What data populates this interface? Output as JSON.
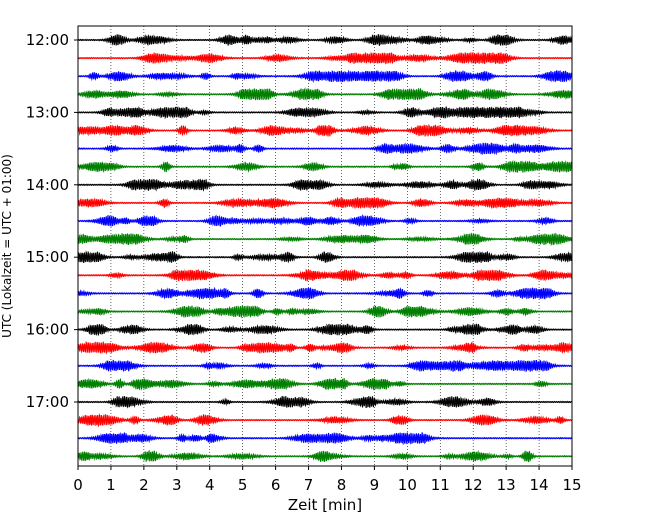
{
  "chart_data": {
    "type": "line",
    "title": "",
    "xlabel": "Zeit  [min]",
    "ylabel": "UTC (Lokalzeit = UTC + 01:00)",
    "xlim": [
      0,
      15
    ],
    "x_ticks": [
      "0",
      "1",
      "2",
      "3",
      "4",
      "5",
      "6",
      "7",
      "8",
      "9",
      "10",
      "11",
      "12",
      "13",
      "14",
      "15"
    ],
    "y_ticks": [
      "12:00",
      "13:00",
      "14:00",
      "15:00",
      "16:00",
      "17:00"
    ],
    "trace_minutes": 15,
    "trace_start": "12:00",
    "trace_count": 24,
    "grid": "vertical-dotted",
    "colors": [
      "#000000",
      "#ff0000",
      "#0000ff",
      "#007f00"
    ],
    "traces": [
      {
        "start": "12:00",
        "color": "#000000"
      },
      {
        "start": "12:15",
        "color": "#ff0000"
      },
      {
        "start": "12:30",
        "color": "#0000ff"
      },
      {
        "start": "12:45",
        "color": "#007f00"
      },
      {
        "start": "13:00",
        "color": "#000000"
      },
      {
        "start": "13:15",
        "color": "#ff0000"
      },
      {
        "start": "13:30",
        "color": "#0000ff"
      },
      {
        "start": "13:45",
        "color": "#007f00"
      },
      {
        "start": "14:00",
        "color": "#000000"
      },
      {
        "start": "14:15",
        "color": "#ff0000"
      },
      {
        "start": "14:30",
        "color": "#0000ff"
      },
      {
        "start": "14:45",
        "color": "#007f00"
      },
      {
        "start": "15:00",
        "color": "#000000"
      },
      {
        "start": "15:15",
        "color": "#ff0000"
      },
      {
        "start": "15:30",
        "color": "#0000ff"
      },
      {
        "start": "15:45",
        "color": "#007f00"
      },
      {
        "start": "16:00",
        "color": "#000000"
      },
      {
        "start": "16:15",
        "color": "#ff0000"
      },
      {
        "start": "16:30",
        "color": "#0000ff"
      },
      {
        "start": "16:45",
        "color": "#007f00"
      },
      {
        "start": "17:00",
        "color": "#000000"
      },
      {
        "start": "17:15",
        "color": "#ff0000"
      },
      {
        "start": "17:30",
        "color": "#0000ff"
      },
      {
        "start": "17:45",
        "color": "#007f00"
      }
    ]
  }
}
